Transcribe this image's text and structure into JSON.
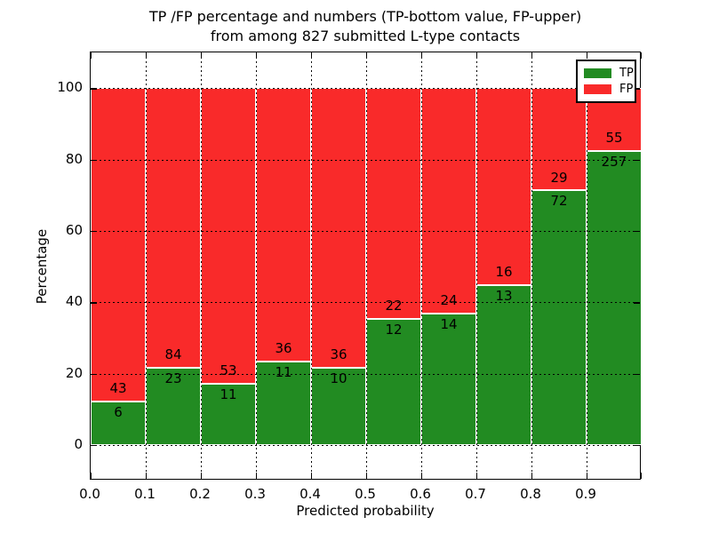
{
  "figure": {
    "title_line1": "TP /FP percentage and numbers (TP-bottom value, FP-upper)",
    "title_line2": "from among 827 submitted L-type contacts",
    "xlabel": "Predicted probability",
    "ylabel": "Percentage"
  },
  "legend": {
    "position": "upper right",
    "items": [
      {
        "label": "TP",
        "color": "#228b22"
      },
      {
        "label": "FP",
        "color": "#f92a2a"
      }
    ]
  },
  "colors": {
    "tp": "#228b22",
    "fp": "#f92a2a",
    "grid": "#000000",
    "spine": "#000000",
    "background": "#ffffff"
  },
  "chart_data": {
    "type": "bar",
    "stacked": true,
    "normalized_to_percent": 100,
    "title": "TP /FP percentage and numbers (TP-bottom value, FP-upper) from among 827 submitted L-type contacts",
    "xlabel": "Predicted probability",
    "ylabel": "Percentage",
    "total_contacts": 827,
    "bin_width": 0.1,
    "bin_starts": [
      0.0,
      0.1,
      0.2,
      0.3,
      0.4,
      0.5,
      0.6,
      0.7,
      0.8,
      0.9
    ],
    "series": [
      {
        "name": "TP",
        "color": "#228b22",
        "counts": [
          6,
          23,
          11,
          11,
          10,
          12,
          14,
          13,
          72,
          257
        ]
      },
      {
        "name": "FP",
        "color": "#f92a2a",
        "counts": [
          43,
          84,
          53,
          36,
          36,
          22,
          24,
          16,
          29,
          55
        ]
      }
    ],
    "tp_percent": [
      12.24,
      21.5,
      17.19,
      23.4,
      21.74,
      35.29,
      36.84,
      44.83,
      71.29,
      82.37
    ],
    "xticks": [
      "0.0",
      "0.1",
      "0.2",
      "0.3",
      "0.4",
      "0.5",
      "0.6",
      "0.7",
      "0.8",
      "0.9"
    ],
    "yticks": [
      "0",
      "20",
      "40",
      "60",
      "80",
      "100"
    ],
    "ytick_values": [
      0,
      20,
      40,
      60,
      80,
      100
    ],
    "xlim": [
      0.0,
      1.0
    ],
    "ylim": [
      -10,
      110
    ],
    "grid": true,
    "grid_style": "dotted",
    "legend_position": "upper right"
  }
}
